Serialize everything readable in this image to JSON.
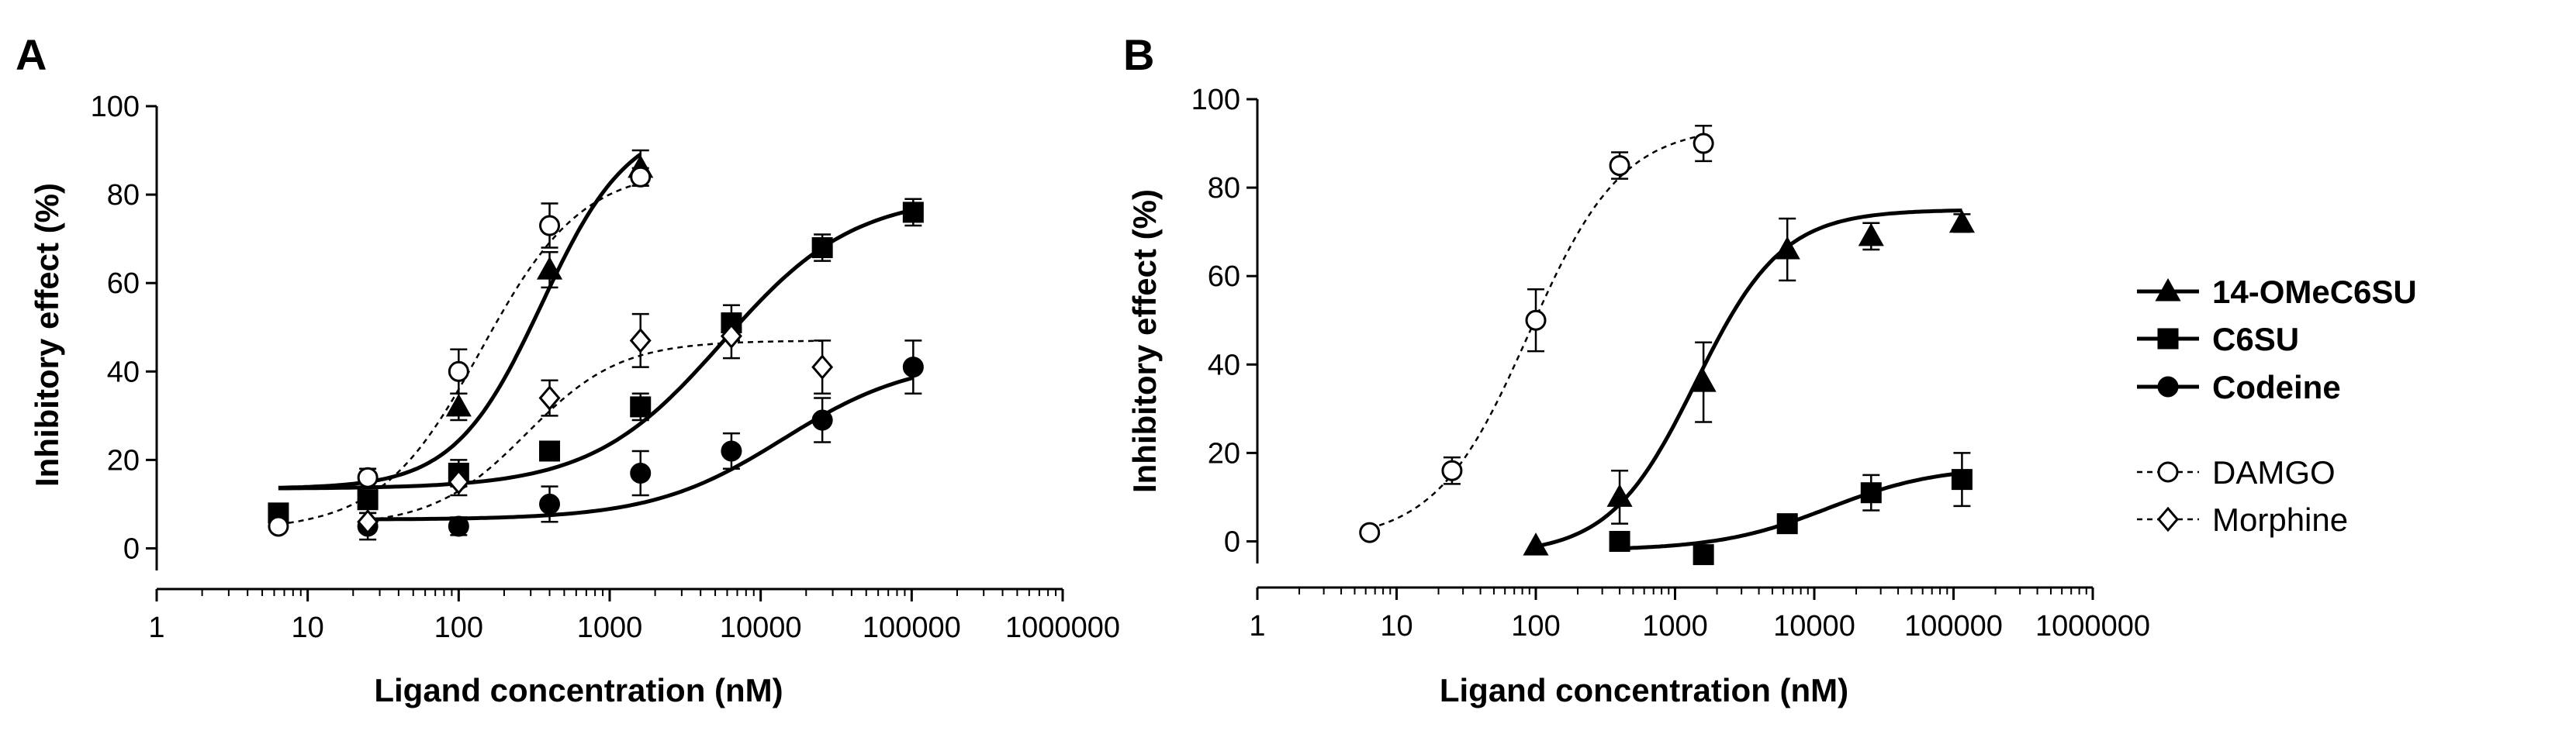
{
  "chart_data": [
    {
      "panel": "A",
      "type": "scatter",
      "xscale": "log",
      "xlabel": "Ligand concentration (nM)",
      "ylabel": "Inhibitory effect (%)",
      "xlim": [
        1,
        1000000
      ],
      "ylim": [
        -5,
        100
      ],
      "xticks": [
        "1",
        "10",
        "100",
        "1000",
        "10000",
        "100000",
        "1000000"
      ],
      "yticks": [
        "0",
        "20",
        "40",
        "60",
        "80",
        "100"
      ],
      "series": [
        {
          "name": "14-OMeC6SU",
          "marker": "triangle",
          "filled": true,
          "line": "solid",
          "points": [
            {
              "x": 100,
              "y": 32,
              "err": 3
            },
            {
              "x": 400,
              "y": 63,
              "err": 4
            },
            {
              "x": 1600,
              "y": 86,
              "err": 4
            }
          ],
          "fit": {
            "bottom": 13.5,
            "top": 97,
            "logEC50": 2.55,
            "hill": 1.5,
            "xfrom": 6.4,
            "xto": 1600
          }
        },
        {
          "name": "C6SU",
          "marker": "square",
          "filled": true,
          "line": "solid",
          "points": [
            {
              "x": 6.4,
              "y": 8,
              "err": 0
            },
            {
              "x": 25,
              "y": 11,
              "err": 2
            },
            {
              "x": 100,
              "y": 17,
              "err": 3
            },
            {
              "x": 400,
              "y": 22,
              "err": 2
            },
            {
              "x": 1600,
              "y": 32,
              "err": 3
            },
            {
              "x": 6400,
              "y": 51,
              "err": 4
            },
            {
              "x": 25600,
              "y": 68,
              "err": 3
            },
            {
              "x": 102400,
              "y": 76,
              "err": 3
            }
          ],
          "fit": {
            "bottom": 13.5,
            "top": 80,
            "logEC50": 3.75,
            "hill": 1.0,
            "xfrom": 6.4,
            "xto": 102400
          }
        },
        {
          "name": "Codeine",
          "marker": "circle",
          "filled": true,
          "line": "solid",
          "points": [
            {
              "x": 25,
              "y": 5,
              "err": 3
            },
            {
              "x": 100,
              "y": 5,
              "err": 2
            },
            {
              "x": 400,
              "y": 10,
              "err": 4
            },
            {
              "x": 1600,
              "y": 17,
              "err": 5
            },
            {
              "x": 6400,
              "y": 22,
              "err": 4
            },
            {
              "x": 25600,
              "y": 29,
              "err": 5
            },
            {
              "x": 102400,
              "y": 41,
              "err": 6
            }
          ],
          "fit": {
            "bottom": 6.5,
            "top": 43,
            "logEC50": 4.15,
            "hill": 1.0,
            "xfrom": 25,
            "xto": 102400
          }
        },
        {
          "name": "DAMGO",
          "marker": "circle",
          "filled": false,
          "line": "dashed",
          "points": [
            {
              "x": 6.4,
              "y": 5,
              "err": 0
            },
            {
              "x": 25,
              "y": 16,
              "err": 2
            },
            {
              "x": 100,
              "y": 40,
              "err": 5
            },
            {
              "x": 400,
              "y": 73,
              "err": 5
            },
            {
              "x": 1600,
              "y": 84,
              "err": 2
            }
          ],
          "fit": {
            "bottom": 4,
            "top": 86,
            "logEC50": 2.15,
            "hill": 1.3,
            "xfrom": 6.4,
            "xto": 1600
          }
        },
        {
          "name": "Morphine",
          "marker": "diamond",
          "filled": false,
          "line": "dashed",
          "points": [
            {
              "x": 25,
              "y": 6,
              "err": 2
            },
            {
              "x": 100,
              "y": 15,
              "err": 3
            },
            {
              "x": 400,
              "y": 34,
              "err": 4
            },
            {
              "x": 1600,
              "y": 47,
              "err": 6
            },
            {
              "x": 6400,
              "y": 48,
              "err": 5
            },
            {
              "x": 25600,
              "y": 41,
              "err": 6
            }
          ],
          "fit": {
            "bottom": 5,
            "top": 47,
            "logEC50": 2.45,
            "hill": 1.4,
            "xfrom": 25,
            "xto": 25600
          }
        }
      ]
    },
    {
      "panel": "B",
      "type": "scatter",
      "xscale": "log",
      "xlabel": "Ligand concentration (nM)",
      "ylabel": "Inhibitory effect (%)",
      "xlim": [
        1,
        1000000
      ],
      "ylim": [
        -5,
        100
      ],
      "xticks": [
        "1",
        "10",
        "100",
        "1000",
        "10000",
        "100000",
        "1000000"
      ],
      "yticks": [
        "0",
        "20",
        "40",
        "60",
        "80",
        "100"
      ],
      "series": [
        {
          "name": "DAMGO",
          "marker": "circle",
          "filled": false,
          "line": "dashed",
          "points": [
            {
              "x": 6.4,
              "y": 2,
              "err": 0
            },
            {
              "x": 25,
              "y": 16,
              "err": 3
            },
            {
              "x": 100,
              "y": 50,
              "err": 7
            },
            {
              "x": 400,
              "y": 85,
              "err": 3
            },
            {
              "x": 1600,
              "y": 90,
              "err": 4
            }
          ],
          "fit": {
            "bottom": 0,
            "top": 94,
            "logEC50": 1.95,
            "hill": 1.3,
            "xfrom": 6.4,
            "xto": 1600
          }
        },
        {
          "name": "14-OMeC6SU",
          "marker": "triangle",
          "filled": true,
          "line": "solid",
          "points": [
            {
              "x": 100,
              "y": -1,
              "err": 0
            },
            {
              "x": 400,
              "y": 10,
              "err": 6
            },
            {
              "x": 1600,
              "y": 36,
              "err": 9
            },
            {
              "x": 6400,
              "y": 66,
              "err": 7
            },
            {
              "x": 25600,
              "y": 69,
              "err": 3
            },
            {
              "x": 115000,
              "y": 72,
              "err": 2
            }
          ],
          "fit": {
            "bottom": -3,
            "top": 75,
            "logEC50": 3.15,
            "hill": 1.4,
            "xfrom": 100,
            "xto": 115000
          }
        },
        {
          "name": "C6SU",
          "marker": "square",
          "filled": true,
          "line": "solid",
          "points": [
            {
              "x": 400,
              "y": 0,
              "err": 0
            },
            {
              "x": 1600,
              "y": -3,
              "err": 0
            },
            {
              "x": 6400,
              "y": 4,
              "err": 2
            },
            {
              "x": 25600,
              "y": 11,
              "err": 4
            },
            {
              "x": 115000,
              "y": 14,
              "err": 6
            }
          ],
          "fit": {
            "bottom": -2,
            "top": 17,
            "logEC50": 4.1,
            "hill": 1.1,
            "xfrom": 400,
            "xto": 115000
          }
        }
      ]
    }
  ],
  "legend": {
    "entries": [
      {
        "label": "14-OMeC6SU",
        "marker": "triangle",
        "filled": true,
        "line": "solid"
      },
      {
        "label": "C6SU",
        "marker": "square",
        "filled": true,
        "line": "solid"
      },
      {
        "label": "Codeine",
        "marker": "circle",
        "filled": true,
        "line": "solid"
      },
      {
        "label": "DAMGO",
        "marker": "circle",
        "filled": false,
        "line": "dashed"
      },
      {
        "label": "Morphine",
        "marker": "diamond",
        "filled": false,
        "line": "dashed"
      }
    ]
  }
}
